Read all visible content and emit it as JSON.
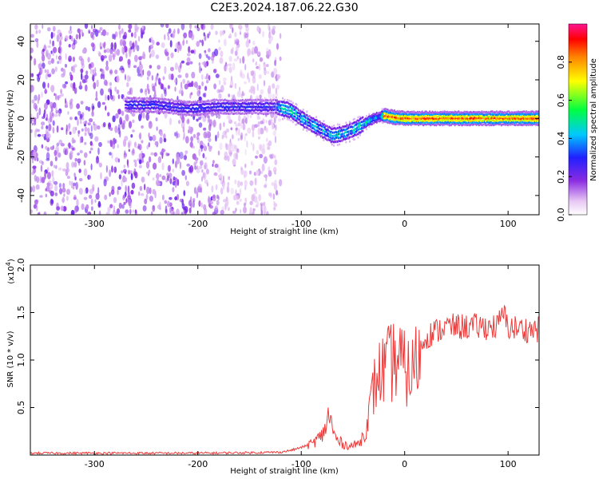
{
  "page_title": "C2E3.2024.187.06.22.G30",
  "chart_data": [
    {
      "type": "heatmap",
      "title": "C2E3.2024.187.06.22.G30",
      "xlabel": "Height of straight line (km)",
      "ylabel": "Frequency (Hz)",
      "xlim": [
        -362,
        130
      ],
      "ylim": [
        -50,
        49
      ],
      "x_ticks": [
        -300,
        -200,
        -100,
        0,
        100
      ],
      "x_tick_labels": [
        "-300",
        "-200",
        "-100",
        "0",
        "100"
      ],
      "y_ticks": [
        -40,
        -20,
        0,
        20,
        40
      ],
      "y_tick_labels": [
        "-40",
        "-20",
        "0",
        "20",
        "40"
      ],
      "colorbar": {
        "label": "Normalized spectral amplitude",
        "range": [
          0,
          1
        ],
        "ticks": [
          0,
          0.2,
          0.4,
          0.6,
          0.8
        ],
        "tick_labels": [
          "0.0",
          "0.2",
          "0.4",
          "0.6",
          "0.8"
        ],
        "colormap": "rainbow (white-violet-blue-cyan-green-yellow-orange-red-magenta)"
      },
      "ridge": {
        "x": [
          -268,
          -240,
          -210,
          -180,
          -150,
          -125,
          -110,
          -100,
          -90,
          -80,
          -70,
          -60,
          -50,
          -40,
          -30,
          -20,
          -10,
          0,
          30,
          60,
          90,
          130
        ],
        "y": [
          7,
          7,
          5,
          6,
          6,
          6,
          4,
          0,
          -3,
          -6,
          -9,
          -8,
          -6,
          -3,
          0,
          1.5,
          0.5,
          0,
          0,
          0,
          0,
          0
        ]
      },
      "noise_region_x": [
        -362,
        -120
      ],
      "grid": false
    },
    {
      "type": "line",
      "xlabel": "Height of straight line (km)",
      "ylabel": "SNR (10 * v/v)",
      "multiplier_label": "(x10",
      "multiplier_exp": "4",
      "multiplier_close": ")",
      "xlim": [
        -362,
        130
      ],
      "ylim": [
        0,
        2.0
      ],
      "x_ticks": [
        -300,
        -200,
        -100,
        0,
        100
      ],
      "x_tick_labels": [
        "-300",
        "-200",
        "-100",
        "0",
        "100"
      ],
      "y_ticks": [
        0.5,
        1.0,
        1.5,
        2.0
      ],
      "y_tick_labels": [
        "0.5",
        "1.0",
        "1.5",
        "2.0"
      ],
      "series_color": "#ef3a3a",
      "grid": false,
      "series": [
        {
          "x": [
            -362,
            -300,
            -250,
            -200,
            -150,
            -120,
            -110,
            -100,
            -90,
            -80,
            -75,
            -72,
            -70,
            -65,
            -60,
            -55,
            -50,
            -45,
            -40,
            -35,
            -30,
            -25,
            -20,
            -15,
            -10,
            -5,
            0,
            5,
            10,
            15,
            20,
            30,
            40,
            50,
            60,
            70,
            80,
            90,
            95,
            100,
            110,
            120,
            130
          ],
          "values": [
            0.02,
            0.02,
            0.02,
            0.02,
            0.025,
            0.03,
            0.05,
            0.08,
            0.12,
            0.2,
            0.35,
            0.45,
            0.25,
            0.15,
            0.12,
            0.1,
            0.1,
            0.12,
            0.2,
            0.4,
            0.7,
            0.85,
            0.9,
            0.95,
            1.0,
            1.0,
            0.9,
            0.85,
            0.95,
            1.1,
            1.25,
            1.3,
            1.35,
            1.35,
            1.35,
            1.35,
            1.35,
            1.35,
            1.5,
            1.35,
            1.33,
            1.32,
            1.32
          ]
        }
      ]
    }
  ]
}
